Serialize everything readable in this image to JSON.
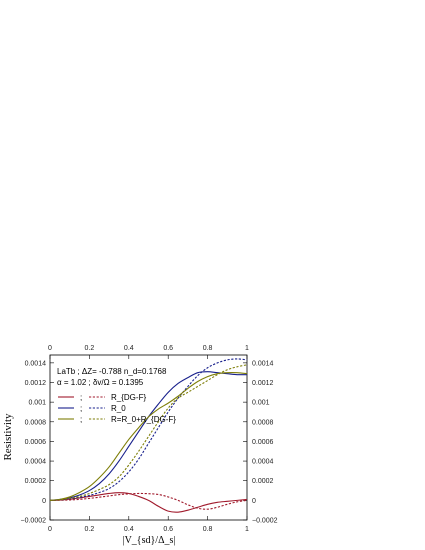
{
  "chart_data": {
    "type": "line",
    "xlabel": "|V_{sd}/Δ_s|",
    "ylabel": "Resistivity",
    "xlim": [
      0,
      1
    ],
    "ylim": [
      -0.0002,
      0.00148
    ],
    "x_ticks": [
      0,
      0.2,
      0.4,
      0.6,
      0.8,
      1
    ],
    "x_tick_labels": [
      "0",
      "0.2",
      "0.4",
      "0.6",
      "0.8",
      "1"
    ],
    "y_ticks": [
      -0.0002,
      0,
      0.0002,
      0.0004,
      0.0006,
      0.0008,
      0.001,
      0.0012,
      0.0014
    ],
    "y_tick_labels": [
      "−0.0002",
      "0",
      "0.0002",
      "0.0004",
      "0.0006",
      "0.0008",
      "0.001",
      "0.0012",
      "0.0014"
    ],
    "annotation": {
      "line1": "LaTb ; ΔZ= -0.788 n_d=0.1768",
      "line2": "α = 1.02  ; δv/Ω = 0.1395"
    },
    "legend": [
      {
        "sep": ";",
        "label": "R_{DG-F}",
        "color": "#a01a2c"
      },
      {
        "sep": ";",
        "label": "R_0",
        "color": "#18208c"
      },
      {
        "sep": ";",
        "label": "R=R_0+R_{DG-F}",
        "color": "#7e7e08"
      }
    ],
    "grid": false,
    "x": [
      0,
      0.05,
      0.1,
      0.15,
      0.2,
      0.25,
      0.3,
      0.35,
      0.4,
      0.45,
      0.5,
      0.55,
      0.6,
      0.65,
      0.7,
      0.75,
      0.8,
      0.85,
      0.9,
      0.95,
      1.0
    ],
    "series": [
      {
        "color": "#a01a2c",
        "style": "solid",
        "values": [
          0,
          3e-06,
          1.2e-05,
          2.5e-05,
          4e-05,
          5.5e-05,
          7e-05,
          7.8e-05,
          7e-05,
          4e-05,
          0.0,
          -6e-05,
          -0.00011,
          -0.00012,
          -0.0001,
          -7e-05,
          -4e-05,
          -2e-05,
          -1e-05,
          0.0,
          1e-05
        ]
      },
      {
        "color": "#a01a2c",
        "style": "dashed",
        "values": [
          0,
          1e-06,
          4e-06,
          1e-05,
          2e-05,
          3.2e-05,
          4.5e-05,
          5.8e-05,
          6.6e-05,
          7e-05,
          6.8e-05,
          6e-05,
          3.5e-05,
          0.0,
          -4.5e-05,
          -8e-05,
          -9e-05,
          -7e-05,
          -4e-05,
          -1.5e-05,
          0.0
        ]
      },
      {
        "color": "#18208c",
        "style": "solid",
        "values": [
          0,
          1e-05,
          2.5e-05,
          5.5e-05,
          0.0001,
          0.00017,
          0.00027,
          0.0004,
          0.00055,
          0.0007,
          0.00085,
          0.00098,
          0.0011,
          0.00119,
          0.00125,
          0.0013,
          0.00131,
          0.0013,
          0.00129,
          0.00128,
          0.00128
        ]
      },
      {
        "color": "#18208c",
        "style": "dashed",
        "values": [
          0,
          5e-06,
          1.5e-05,
          3e-05,
          5e-05,
          8e-05,
          0.00012,
          0.00019,
          0.00029,
          0.00042,
          0.00058,
          0.00074,
          0.0009,
          0.00104,
          0.00116,
          0.00127,
          0.00135,
          0.0014,
          0.00143,
          0.00144,
          0.00143
        ]
      },
      {
        "color": "#7e7e08",
        "style": "solid",
        "values": [
          0,
          1e-05,
          3.5e-05,
          8e-05,
          0.00014,
          0.00023,
          0.00034,
          0.00048,
          0.00062,
          0.00074,
          0.00085,
          0.00093,
          0.00099,
          0.00106,
          0.00114,
          0.00121,
          0.00126,
          0.00129,
          0.0013,
          0.0013,
          0.00129
        ]
      },
      {
        "color": "#7e7e08",
        "style": "dashed",
        "values": [
          0,
          5e-06,
          2e-05,
          4e-05,
          7e-05,
          0.00011,
          0.00016,
          0.00024,
          0.00036,
          0.0005,
          0.00065,
          0.0008,
          0.00094,
          0.00104,
          0.0011,
          0.00116,
          0.00122,
          0.00128,
          0.00133,
          0.00136,
          0.00138
        ]
      }
    ]
  }
}
